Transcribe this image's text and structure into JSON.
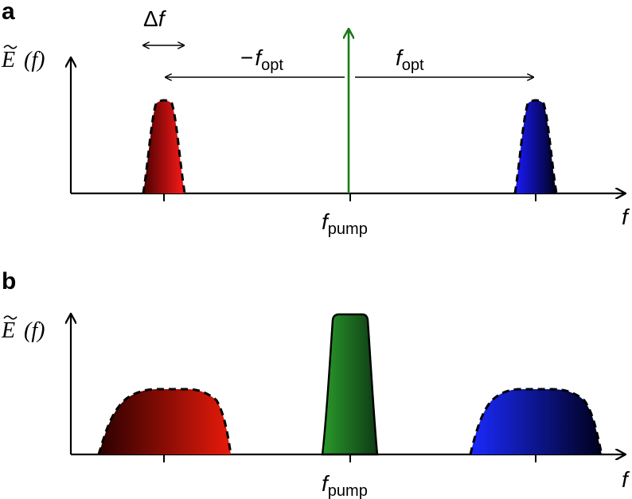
{
  "panels": [
    {
      "label": "a",
      "y_axis_label": {
        "symbol": "E",
        "arg": "(f)"
      },
      "x_axis_label": "f"
    },
    {
      "label": "b",
      "y_axis_label": {
        "symbol": "E",
        "arg": "(f)"
      },
      "x_axis_label": "f"
    }
  ],
  "annotations": {
    "delta_f": {
      "symbol": "Δ",
      "var": "f"
    },
    "minus_fopt": {
      "sign": "−",
      "var": "f",
      "sub": "opt"
    },
    "fopt": {
      "var": "f",
      "sub": "opt"
    },
    "fpump_a": {
      "var": "f",
      "sub": "pump"
    },
    "fpump_b": {
      "var": "f",
      "sub": "pump"
    }
  },
  "colors": {
    "red": "#ff1a1a",
    "dark_red": "#3a0000",
    "blue": "#1a1aff",
    "dark_blue": "#00001a",
    "green": "#1f8a1f",
    "dark_green": "#0e3a16",
    "pump_line": "#1a7a1a",
    "axis": "#000000"
  }
}
